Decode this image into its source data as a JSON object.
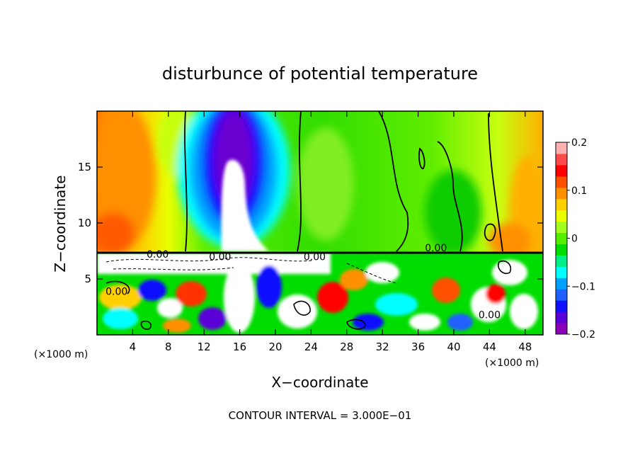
{
  "chart_data": {
    "type": "heatmap",
    "title": "disturbunce of potential temperature",
    "xlabel": "X−coordinate",
    "ylabel": "Z−coordinate",
    "x_unit_left": "(×1000 m)",
    "x_unit_right": "(×1000 m)",
    "xlim": [
      0,
      50
    ],
    "ylim": [
      0,
      20
    ],
    "x_ticks": [
      4,
      8,
      12,
      16,
      20,
      24,
      28,
      32,
      36,
      40,
      44,
      48
    ],
    "y_ticks": [
      5,
      10,
      15
    ],
    "colorbar": {
      "range": [
        -0.2,
        0.2
      ],
      "tick_values": [
        0.2,
        0.1,
        0,
        -0.1,
        -0.2
      ],
      "tick_labels": [
        "0.2",
        "0.1",
        "0",
        "−0.1",
        "−0.2"
      ],
      "colors": [
        "#8b00b8",
        "#5a00d8",
        "#1010ff",
        "#2060ff",
        "#00a0ff",
        "#00ffff",
        "#00ee88",
        "#00dd00",
        "#55ee00",
        "#a0ff20",
        "#e8ff00",
        "#ffd000",
        "#ff9000",
        "#ff5000",
        "#ff0000",
        "#ff4a4a",
        "#ffb0b0"
      ]
    },
    "contour_labels": [
      {
        "text": "0.00",
        "x": 6.8,
        "z": 7.2
      },
      {
        "text": "0.00",
        "x": 13.8,
        "z": 7.0
      },
      {
        "text": "0.00",
        "x": 24.4,
        "z": 7.0
      },
      {
        "text": "0.00",
        "x": 38.0,
        "z": 7.8
      },
      {
        "text": "0.00",
        "x": 2.2,
        "z": 3.9
      },
      {
        "text": "0.00",
        "x": 44.0,
        "z": 1.8
      }
    ],
    "grid": false,
    "legend": "colorbar-right"
  },
  "footer": {
    "contour_interval": "CONTOUR INTERVAL = 3.000E−01"
  }
}
